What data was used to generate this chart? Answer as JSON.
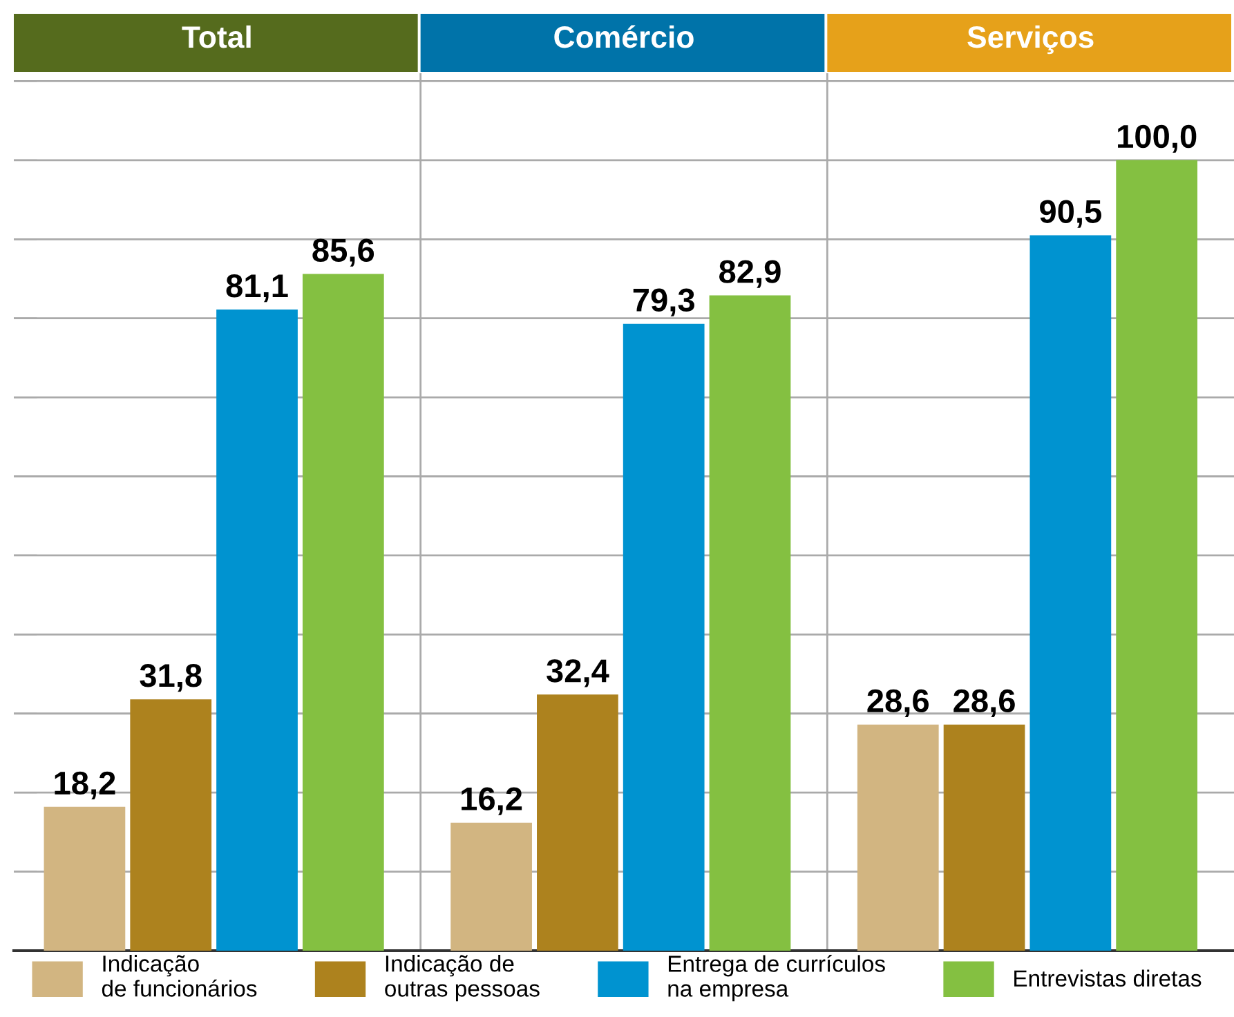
{
  "chart_data": {
    "type": "bar",
    "categories": [
      "Total",
      "Comércio",
      "Serviços"
    ],
    "series": [
      {
        "name": "Indicação\nde funcionários",
        "color": "#d2b581",
        "values": [
          18.2,
          16.2,
          28.6
        ],
        "value_labels": [
          "18,2",
          "16,2",
          "28,6"
        ]
      },
      {
        "name": "Indicação de\noutras pessoas",
        "color": "#ad821e",
        "values": [
          31.8,
          32.4,
          28.6
        ],
        "value_labels": [
          "31,8",
          "32,4",
          "28,6"
        ]
      },
      {
        "name": "Entrega de currículos\nna empresa",
        "color": "#0093d0",
        "values": [
          81.1,
          79.3,
          90.5
        ],
        "value_labels": [
          "81,1",
          "79,3",
          "90,5"
        ]
      },
      {
        "name": "Entrevistas diretas",
        "color": "#84c041",
        "values": [
          85.6,
          82.9,
          100.0
        ],
        "value_labels": [
          "85,6",
          "82,9",
          "100,0"
        ]
      }
    ],
    "grid": "y",
    "tick_labels": false,
    "legend": "bottom"
  }
}
